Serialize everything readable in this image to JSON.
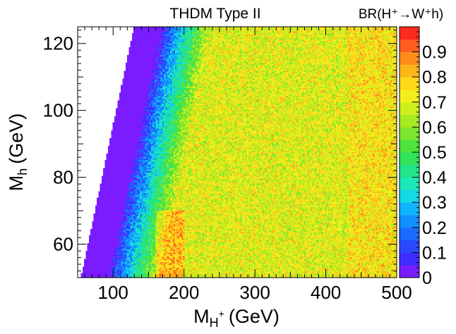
{
  "chart_data": {
    "type": "heatmap",
    "title": "THDM Type II",
    "colorbar_title": "BR(H⁺→W⁺h)",
    "xlabel": {
      "main": "M",
      "sub": "H",
      "sup": "+",
      "unit": "(GeV)"
    },
    "ylabel": {
      "main": "M",
      "sub": "h",
      "unit": "(GeV)"
    },
    "xlim": [
      50,
      500
    ],
    "ylim": [
      50,
      125
    ],
    "zlim": [
      0,
      1.0
    ],
    "x_ticks": [
      100,
      200,
      300,
      400,
      500
    ],
    "x_tick_labels": [
      "100",
      "200",
      "300",
      "400",
      "500"
    ],
    "y_ticks": [
      60,
      80,
      100,
      120
    ],
    "y_tick_labels": [
      "60",
      "80",
      "100",
      "120"
    ],
    "z_ticks": [
      0,
      0.1,
      0.2,
      0.3,
      0.4,
      0.5,
      0.6,
      0.7,
      0.8,
      0.9
    ],
    "z_tick_labels": [
      "0",
      "0.1",
      "0.2",
      "0.3",
      "0.4",
      "0.5",
      "0.6",
      "0.7",
      "0.8",
      "0.9"
    ],
    "palette": [
      "#7a1cff",
      "#3f2cff",
      "#2a49ff",
      "#1b6bff",
      "#1090ff",
      "#0fb6ff",
      "#14d9e6",
      "#1ce8b9",
      "#22e58a",
      "#31e25a",
      "#4fe23a",
      "#7be62c",
      "#a6ea22",
      "#cfee1e",
      "#f1ee1c",
      "#ffd81a",
      "#ffb51a",
      "#ff8d1c",
      "#ff5e1e",
      "#ff2a1e"
    ],
    "bins": {
      "x": 200,
      "y": 160
    },
    "regions": {
      "empty_region": "upper-left, M_H+ below kinematic threshold M_h + M_W",
      "zero_br_band": "just above threshold, BR ≈ 0",
      "peak_band": "around M_H+ ≈ 160-190 GeV at low M_h, BR ≈ 0.8-0.9",
      "bulk": "BR ≈ 0.6-0.8 for M_H+ > 250 GeV"
    },
    "grid": false,
    "legend": "colorbar-right"
  }
}
